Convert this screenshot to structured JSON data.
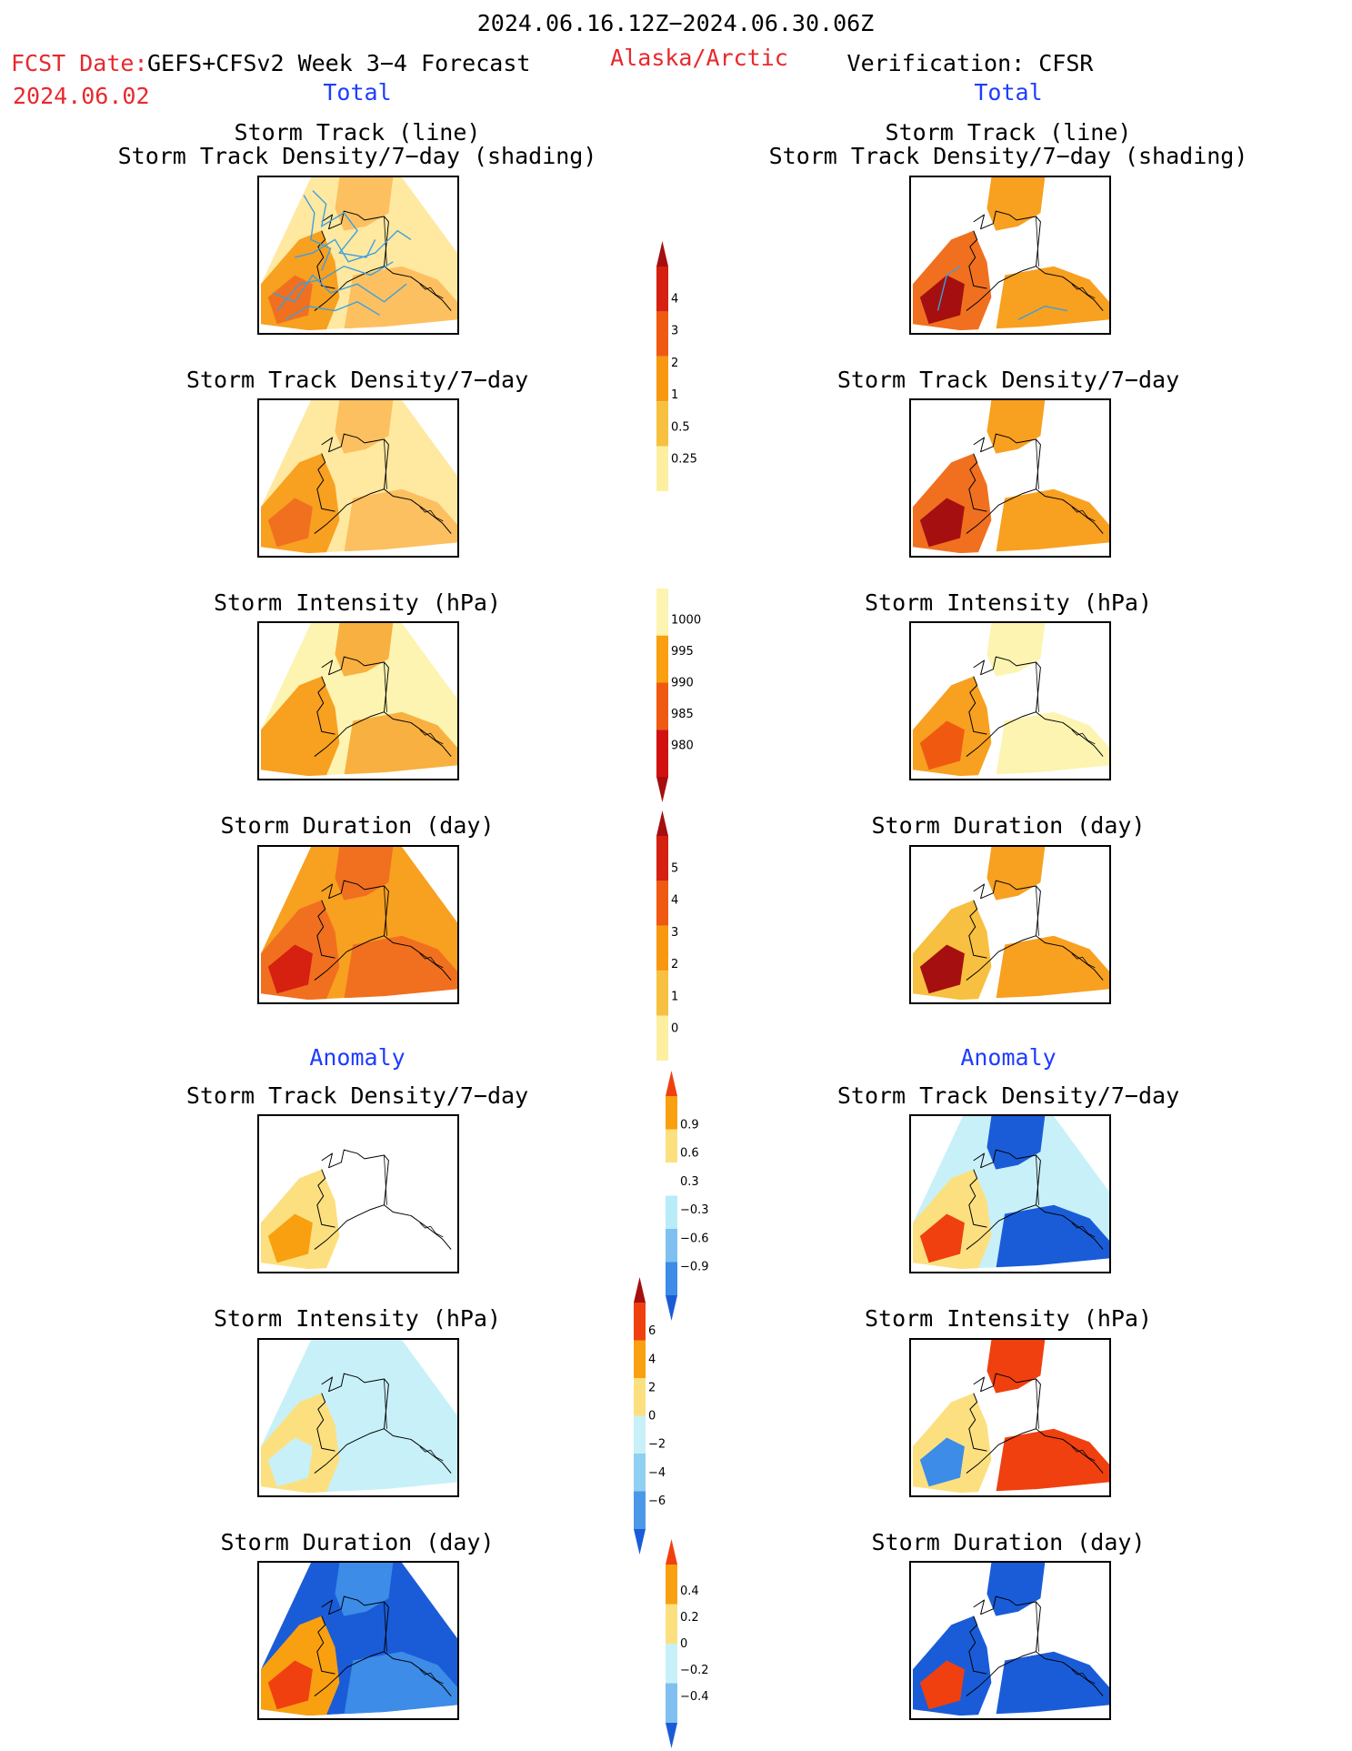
{
  "header": {
    "period": "2024.06.16.12Z−2024.06.30.06Z",
    "fcst_label": "FCST Date:",
    "model": "GEFS+CFSv2 Week 3−4 Forecast",
    "fcst_date": "2024.06.02",
    "region": "Alaska/Arctic",
    "verification": "Verification: CFSR",
    "left_section": "Total",
    "right_section": "Total"
  },
  "panel_titles": {
    "track_line": "Storm Track (line)",
    "track_shading": "Storm Track Density/7−day (shading)",
    "density": "Storm Track Density/7−day",
    "intensity": "Storm Intensity (hPa)",
    "duration": "Storm Duration (day)",
    "anomaly": "Anomaly"
  },
  "colorbars": {
    "density": {
      "labels": [
        "4",
        "3",
        "2",
        "1",
        "0.5",
        "0.25"
      ],
      "colors": [
        "#a50f0f",
        "#d62010",
        "#f05a10",
        "#f89810",
        "#f8c040",
        "#fcf0a0"
      ]
    },
    "intensity": {
      "labels": [
        "1000",
        "995",
        "990",
        "985",
        "980"
      ],
      "colors": [
        "#fcf4b0",
        "#f8a010",
        "#f05a10",
        "#d21010",
        "#a50f0f"
      ]
    },
    "duration": {
      "labels": [
        "5",
        "4",
        "3",
        "2",
        "1",
        "0"
      ],
      "colors": [
        "#a50f0f",
        "#d62010",
        "#f05a10",
        "#f89810",
        "#f8c040",
        "#fcf0a0"
      ]
    },
    "anom_density": {
      "labels": [
        "0.9",
        "0.6",
        "0.3",
        "−0.3",
        "−0.6",
        "−0.9"
      ],
      "colors": [
        "#f04010",
        "#f8a010",
        "#fce080",
        "#ffffff",
        "#b8ecf8",
        "#80c0f0",
        "#3c8ce8",
        "#1a5cd8"
      ]
    },
    "anom_intensity": {
      "labels": [
        "6",
        "4",
        "2",
        "0",
        "−2",
        "−4",
        "−6"
      ],
      "colors": [
        "#a50f0f",
        "#f04010",
        "#f8a010",
        "#fce080",
        "#c8f0f8",
        "#90d0f0",
        "#4c98e8",
        "#1a5cd8"
      ]
    },
    "anom_duration": {
      "labels": [
        "0.4",
        "0.2",
        "0",
        "−0.2",
        "−0.4"
      ],
      "colors": [
        "#f04010",
        "#f8a010",
        "#fce080",
        "#c8f0f8",
        "#80c0f0",
        "#1a5cd8"
      ]
    }
  }
}
